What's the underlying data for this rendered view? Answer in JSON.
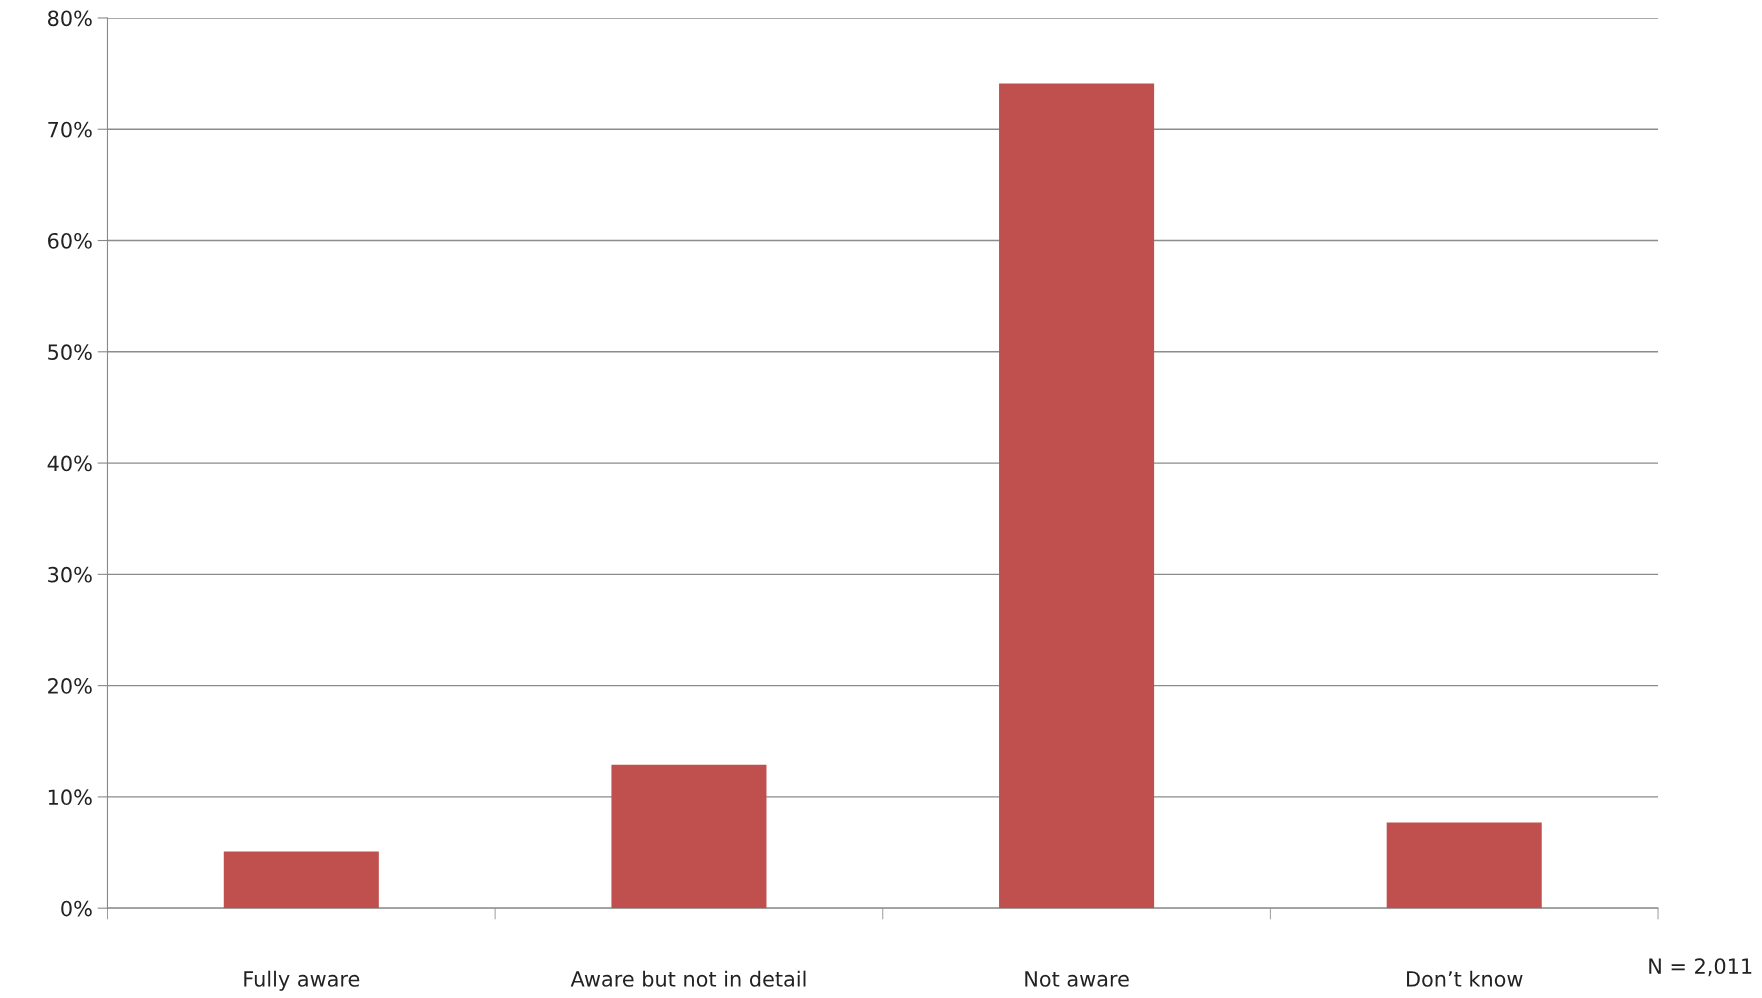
{
  "chart_data": {
    "type": "bar",
    "categories": [
      "Fully aware",
      "Aware but not in detail",
      "Not aware",
      "Don’t know"
    ],
    "values": [
      5.1,
      12.9,
      74.1,
      7.7
    ],
    "color": "#c0504d",
    "ylim": [
      0,
      80
    ],
    "yticks": [
      {
        "value": 0,
        "label": "0%"
      },
      {
        "value": 10,
        "label": "10%"
      },
      {
        "value": 20,
        "label": "20%"
      },
      {
        "value": 30,
        "label": "30%"
      },
      {
        "value": 40,
        "label": "40%"
      },
      {
        "value": 50,
        "label": "50%"
      },
      {
        "value": 60,
        "label": "60%"
      },
      {
        "value": 70,
        "label": "70%"
      },
      {
        "value": 80,
        "label": "80%"
      }
    ],
    "grid": "y",
    "annotations": [
      "N = 2,011"
    ]
  }
}
